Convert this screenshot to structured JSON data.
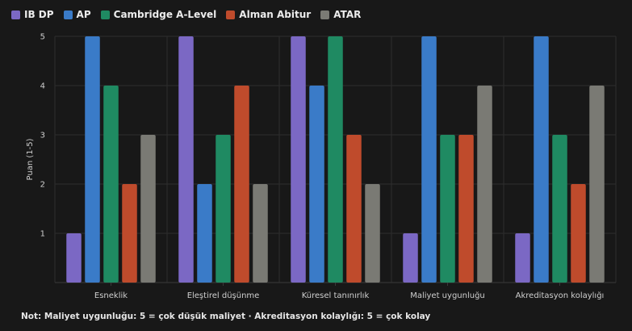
{
  "chart_data": {
    "type": "bar",
    "title": "",
    "xlabel": "",
    "ylabel": "Puan (1-5)",
    "ylim": [
      0,
      5
    ],
    "yticks": [
      1,
      2,
      3,
      4,
      5
    ],
    "grid": true,
    "legend_position": "top-left",
    "categories": [
      "Esneklik",
      "Eleştirel düşünme",
      "Küresel tanınırlık",
      "Maliyet uygunluğu",
      "Akreditasyon kolaylığı"
    ],
    "series": [
      {
        "name": "IB DP",
        "color": "#7b68c4",
        "values": [
          1,
          5,
          5,
          1,
          1
        ]
      },
      {
        "name": "AP",
        "color": "#3a7bc8",
        "values": [
          5,
          2,
          4,
          5,
          5
        ]
      },
      {
        "name": "Cambridge A-Level",
        "color": "#1f8a62",
        "values": [
          4,
          3,
          5,
          3,
          3
        ]
      },
      {
        "name": "Alman Abitur",
        "color": "#bf4b2c",
        "values": [
          2,
          4,
          3,
          3,
          2
        ]
      },
      {
        "name": "ATAR",
        "color": "#7a7a74",
        "values": [
          3,
          2,
          2,
          4,
          4
        ]
      }
    ]
  },
  "note": "Not: Maliyet uygunluğu: 5 = çok düşük maliyet · Akreditasyon kolaylığı: 5 = çok kolay"
}
